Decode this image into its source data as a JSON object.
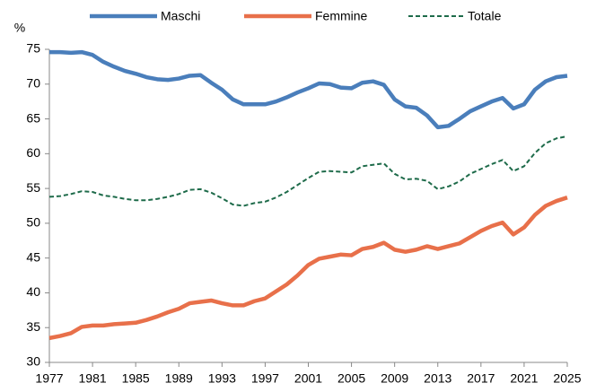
{
  "chart_data": {
    "type": "line",
    "y_label": "%",
    "x": [
      1977,
      1978,
      1979,
      1980,
      1981,
      1982,
      1983,
      1984,
      1985,
      1986,
      1987,
      1988,
      1989,
      1990,
      1991,
      1992,
      1993,
      1994,
      1995,
      1996,
      1997,
      1998,
      1999,
      2000,
      2001,
      2002,
      2003,
      2004,
      2005,
      2006,
      2007,
      2008,
      2009,
      2010,
      2011,
      2012,
      2013,
      2014,
      2015,
      2016,
      2017,
      2018,
      2019,
      2020,
      2021,
      2022,
      2023,
      2024,
      2025
    ],
    "series": [
      {
        "name": "Maschi",
        "color": "#4a7ebb",
        "style": "solid",
        "values": [
          74.6,
          74.6,
          74.5,
          74.6,
          74.2,
          73.2,
          72.5,
          71.9,
          71.5,
          71.0,
          70.7,
          70.6,
          70.8,
          71.2,
          71.3,
          70.2,
          69.2,
          67.8,
          67.1,
          67.1,
          67.1,
          67.5,
          68.1,
          68.8,
          69.4,
          70.1,
          70.0,
          69.5,
          69.4,
          70.2,
          70.4,
          69.9,
          67.8,
          66.8,
          66.6,
          65.5,
          63.8,
          64.0,
          65.0,
          66.1,
          66.8,
          67.5,
          68.0,
          66.5,
          67.1,
          69.2,
          70.4,
          71.0,
          71.2
        ]
      },
      {
        "name": "Femmine",
        "color": "#e8704a",
        "style": "solid",
        "values": [
          33.5,
          33.8,
          34.2,
          35.1,
          35.3,
          35.3,
          35.5,
          35.6,
          35.7,
          36.1,
          36.6,
          37.2,
          37.7,
          38.5,
          38.7,
          38.9,
          38.5,
          38.2,
          38.2,
          38.8,
          39.2,
          40.2,
          41.2,
          42.5,
          44.0,
          44.9,
          45.2,
          45.5,
          45.4,
          46.3,
          46.6,
          47.2,
          46.2,
          45.9,
          46.2,
          46.7,
          46.3,
          46.7,
          47.1,
          48.0,
          48.9,
          49.6,
          50.1,
          48.4,
          49.4,
          51.2,
          52.5,
          53.2,
          53.7
        ]
      },
      {
        "name": "Totale",
        "color": "#1e6b4a",
        "style": "dashed",
        "values": [
          53.8,
          53.9,
          54.2,
          54.6,
          54.5,
          54.0,
          53.8,
          53.5,
          53.3,
          53.3,
          53.5,
          53.8,
          54.2,
          54.8,
          54.9,
          54.4,
          53.6,
          52.7,
          52.5,
          52.9,
          53.1,
          53.7,
          54.5,
          55.5,
          56.5,
          57.4,
          57.5,
          57.4,
          57.3,
          58.2,
          58.4,
          58.6,
          57.1,
          56.3,
          56.4,
          56.1,
          54.9,
          55.3,
          56.0,
          57.1,
          57.8,
          58.5,
          59.1,
          57.5,
          58.2,
          60.1,
          61.5,
          62.2,
          62.5
        ]
      }
    ],
    "xlim": [
      1977,
      2025
    ],
    "xticks": [
      1977,
      1981,
      1985,
      1989,
      1993,
      1997,
      2001,
      2005,
      2009,
      2013,
      2017,
      2021,
      2025
    ],
    "ylim": [
      30,
      75
    ],
    "yticks": [
      30,
      35,
      40,
      45,
      50,
      55,
      60,
      65,
      70,
      75
    ],
    "grid": false,
    "legend": "top"
  }
}
